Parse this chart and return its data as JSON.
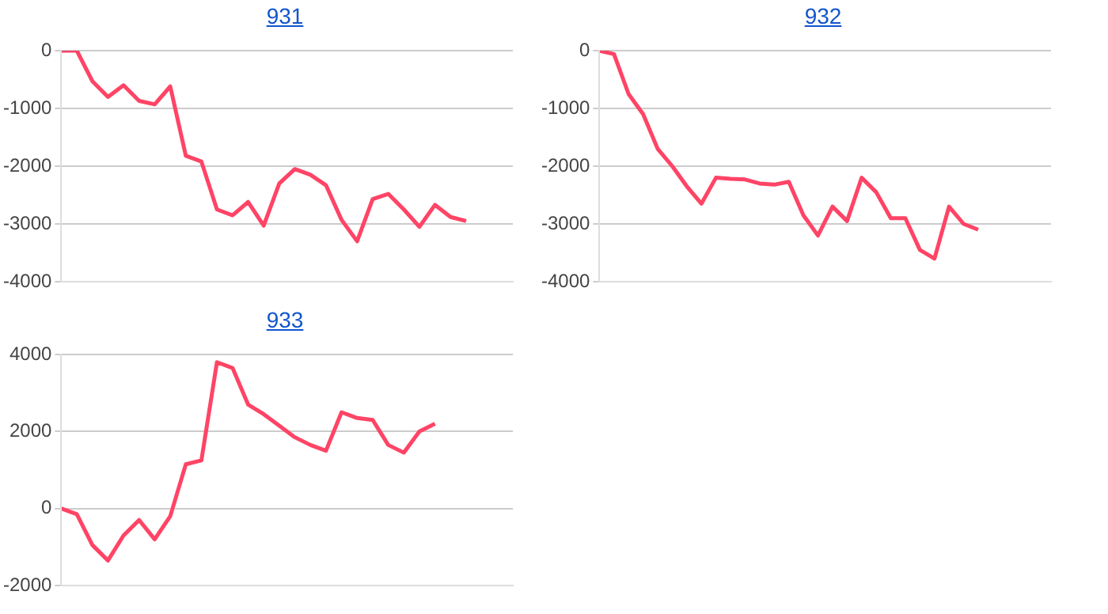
{
  "chart_data": [
    {
      "type": "line",
      "title": "931",
      "categories": [
        null,
        null,
        null,
        null,
        null,
        null,
        null,
        null,
        null,
        null,
        null,
        null,
        null,
        null,
        null,
        null,
        null,
        null,
        null,
        null,
        null,
        null,
        null,
        null,
        null,
        null,
        null,
        null,
        null,
        null
      ],
      "series": [
        {
          "color": "#ff4466",
          "values": [
            0,
            0,
            -530,
            -800,
            -600,
            -870,
            -930,
            -620,
            -1820,
            -1920,
            -2750,
            -2850,
            -2620,
            -3030,
            -2300,
            -2050,
            -2150,
            -2330,
            -2930,
            -3300,
            -2570,
            -2480,
            -2750,
            -3050,
            -2670,
            -2880,
            -2950,
            null,
            null,
            null
          ]
        }
      ],
      "ylim": [
        -4000,
        0
      ],
      "yticks": [
        -4000,
        -3000,
        -2000,
        -1000,
        0
      ],
      "grid": "y",
      "tick_labels": "y"
    },
    {
      "type": "line",
      "title": "932",
      "categories": [
        null,
        null,
        null,
        null,
        null,
        null,
        null,
        null,
        null,
        null,
        null,
        null,
        null,
        null,
        null,
        null,
        null,
        null,
        null,
        null,
        null,
        null,
        null,
        null,
        null,
        null,
        null,
        null,
        null,
        null,
        null,
        null
      ],
      "series": [
        {
          "color": "#ff4466",
          "values": [
            0,
            -60,
            -750,
            -1100,
            -1700,
            -2000,
            -2350,
            -2650,
            -2200,
            -2220,
            -2230,
            -2300,
            -2320,
            -2270,
            -2850,
            -3200,
            -2700,
            -2950,
            -2200,
            -2450,
            -2900,
            -2900,
            -3450,
            -3600,
            -2700,
            -3000,
            -3100,
            null,
            null,
            null,
            null,
            null
          ]
        }
      ],
      "ylim": [
        -4000,
        0
      ],
      "yticks": [
        -4000,
        -3000,
        -2000,
        -1000,
        0
      ],
      "grid": "y",
      "tick_labels": "y"
    },
    {
      "type": "line",
      "title": "933",
      "categories": [
        null,
        null,
        null,
        null,
        null,
        null,
        null,
        null,
        null,
        null,
        null,
        null,
        null,
        null,
        null,
        null,
        null,
        null,
        null,
        null,
        null,
        null,
        null,
        null,
        null,
        null,
        null,
        null,
        null,
        null
      ],
      "series": [
        {
          "color": "#ff4466",
          "values": [
            0,
            -150,
            -950,
            -1350,
            -700,
            -300,
            -800,
            -200,
            1150,
            1250,
            3800,
            3650,
            2700,
            2450,
            2150,
            1850,
            1650,
            1500,
            2500,
            2350,
            2300,
            1650,
            1450,
            2000,
            2200,
            null,
            null,
            null,
            null,
            null
          ]
        }
      ],
      "ylim": [
        -2000,
        4000
      ],
      "yticks": [
        -2000,
        0,
        2000,
        4000
      ],
      "grid": "y",
      "tick_labels": "y"
    }
  ]
}
